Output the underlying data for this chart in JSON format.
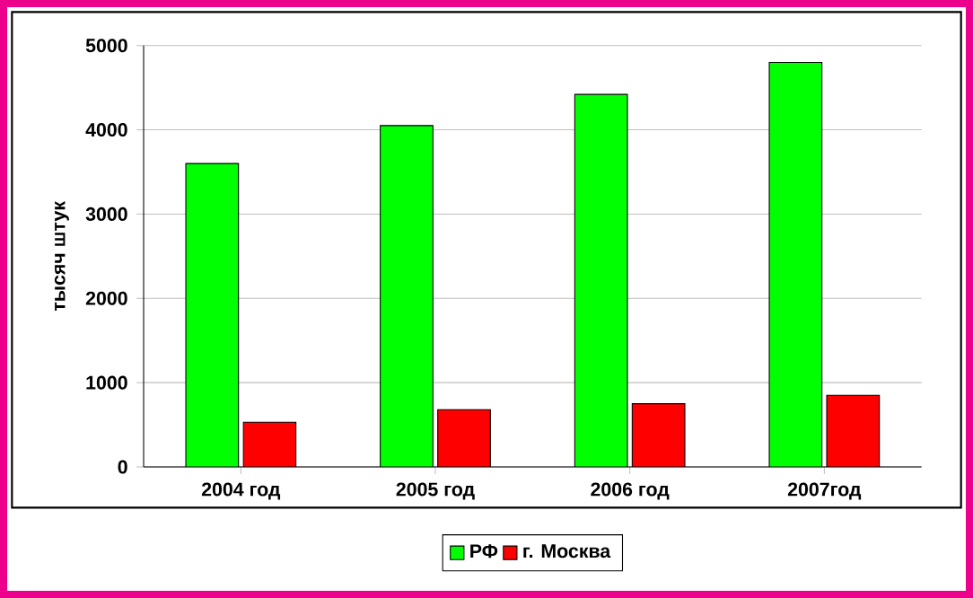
{
  "chart_data": {
    "type": "bar",
    "ylabel": "тысяч штук",
    "categories": [
      "2004 год",
      "2005 год",
      "2006 год",
      "2007год"
    ],
    "series": [
      {
        "name": "РФ",
        "color": "#00ff00",
        "values": [
          3600,
          4050,
          4420,
          4800
        ]
      },
      {
        "name": "г. Москва",
        "color": "#ff0000",
        "values": [
          530,
          680,
          750,
          850
        ]
      }
    ],
    "ylim": [
      0,
      5000
    ],
    "yticks": [
      0,
      1000,
      2000,
      3000,
      4000,
      5000
    ],
    "grid": "y",
    "legend": "bottom"
  }
}
